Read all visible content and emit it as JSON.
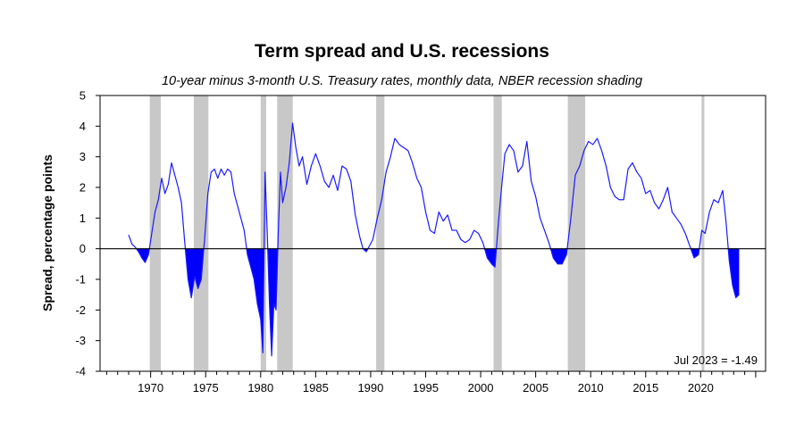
{
  "chart_data": {
    "type": "line",
    "title": "Term spread and U.S. recessions",
    "subtitle": "10-year minus 3-month U.S. Treasury rates, monthly data, NBER recession shading",
    "xlabel": "",
    "ylabel": "Spread, percentage points",
    "xlim": [
      1965.4,
      2025.9
    ],
    "ylim": [
      -4,
      5
    ],
    "yticks": [
      5,
      4,
      3,
      2,
      1,
      0,
      -1,
      -2,
      -3,
      -4
    ],
    "xticks": [
      1970,
      1975,
      1980,
      1985,
      1990,
      1995,
      2000,
      2005,
      2010,
      2015,
      2020
    ],
    "ytick_labels": [
      "5",
      "4",
      "3",
      "2",
      "1",
      "0",
      "-1",
      "-2",
      "-3",
      "-4"
    ],
    "xtick_labels": [
      "1970",
      "1975",
      "1980",
      "1985",
      "1990",
      "1995",
      "2000",
      "2005",
      "2010",
      "2015",
      "2020"
    ],
    "colors": {
      "line": "#1a1aff",
      "fill": "#0000ff",
      "recession": "#c8c8c8",
      "zero_line": "#000000"
    },
    "recessions": [
      [
        1969.92,
        1970.92
      ],
      [
        1973.92,
        1975.25
      ],
      [
        1980.0,
        1980.5
      ],
      [
        1981.5,
        1982.92
      ],
      [
        1990.5,
        1991.25
      ],
      [
        2001.17,
        2001.92
      ],
      [
        2007.92,
        2009.5
      ],
      [
        2020.08,
        2020.33
      ]
    ],
    "series": [
      {
        "name": "Term spread",
        "x": [
          1968.0,
          1968.3,
          1968.6,
          1968.9,
          1969.2,
          1969.5,
          1969.8,
          1970.1,
          1970.4,
          1970.7,
          1971.0,
          1971.3,
          1971.6,
          1971.9,
          1972.2,
          1972.5,
          1972.8,
          1973.1,
          1973.4,
          1973.7,
          1974.0,
          1974.3,
          1974.6,
          1974.9,
          1975.2,
          1975.5,
          1975.8,
          1976.1,
          1976.4,
          1976.7,
          1977.0,
          1977.3,
          1977.6,
          1977.9,
          1978.2,
          1978.5,
          1978.8,
          1979.1,
          1979.4,
          1979.7,
          1980.0,
          1980.2,
          1980.4,
          1980.6,
          1980.8,
          1981.0,
          1981.2,
          1981.4,
          1981.6,
          1981.8,
          1982.0,
          1982.3,
          1982.6,
          1982.9,
          1983.2,
          1983.5,
          1983.8,
          1984.2,
          1984.6,
          1985.0,
          1985.4,
          1985.8,
          1986.2,
          1986.6,
          1987.0,
          1987.4,
          1987.8,
          1988.2,
          1988.6,
          1989.0,
          1989.3,
          1989.6,
          1989.9,
          1990.2,
          1990.6,
          1991.0,
          1991.4,
          1991.8,
          1992.2,
          1992.6,
          1993.0,
          1993.4,
          1993.8,
          1994.2,
          1994.6,
          1995.0,
          1995.4,
          1995.8,
          1996.2,
          1996.6,
          1997.0,
          1997.4,
          1997.8,
          1998.2,
          1998.6,
          1999.0,
          1999.4,
          1999.8,
          2000.2,
          2000.6,
          2001.0,
          2001.3,
          2001.6,
          2001.9,
          2002.2,
          2002.6,
          2003.0,
          2003.4,
          2003.8,
          2004.2,
          2004.6,
          2005.0,
          2005.4,
          2005.8,
          2006.2,
          2006.6,
          2007.0,
          2007.4,
          2007.8,
          2008.2,
          2008.6,
          2009.0,
          2009.4,
          2009.8,
          2010.2,
          2010.6,
          2011.0,
          2011.4,
          2011.8,
          2012.2,
          2012.6,
          2013.0,
          2013.4,
          2013.8,
          2014.2,
          2014.6,
          2015.0,
          2015.4,
          2015.8,
          2016.2,
          2016.6,
          2017.0,
          2017.4,
          2017.8,
          2018.2,
          2018.6,
          2019.0,
          2019.4,
          2019.8,
          2020.1,
          2020.4,
          2020.8,
          2021.2,
          2021.6,
          2022.0,
          2022.3,
          2022.6,
          2022.9,
          2023.2,
          2023.5
        ],
        "values": [
          0.45,
          0.15,
          0.05,
          -0.1,
          -0.3,
          -0.45,
          -0.2,
          0.5,
          1.2,
          1.6,
          2.3,
          1.8,
          2.1,
          2.8,
          2.4,
          2.0,
          1.5,
          0.2,
          -1.0,
          -1.6,
          -0.9,
          -1.3,
          -1.0,
          0.3,
          1.8,
          2.5,
          2.6,
          2.3,
          2.6,
          2.4,
          2.6,
          2.5,
          1.8,
          1.4,
          1.0,
          0.6,
          -0.2,
          -0.6,
          -1.0,
          -1.8,
          -2.3,
          -3.4,
          2.5,
          0.5,
          -1.8,
          -3.5,
          -1.8,
          -2.0,
          0.5,
          2.5,
          1.5,
          2.0,
          2.8,
          4.1,
          3.3,
          2.7,
          3.0,
          2.1,
          2.7,
          3.1,
          2.7,
          2.2,
          2.0,
          2.4,
          1.9,
          2.7,
          2.6,
          2.2,
          1.1,
          0.4,
          0.0,
          -0.1,
          0.1,
          0.3,
          1.0,
          1.6,
          2.5,
          3.0,
          3.6,
          3.4,
          3.3,
          3.2,
          2.8,
          2.3,
          2.0,
          1.2,
          0.6,
          0.5,
          1.2,
          0.9,
          1.1,
          0.6,
          0.6,
          0.3,
          0.2,
          0.3,
          0.6,
          0.5,
          0.2,
          -0.3,
          -0.5,
          -0.6,
          0.8,
          2.0,
          3.1,
          3.4,
          3.2,
          2.5,
          2.7,
          3.5,
          2.2,
          1.7,
          1.0,
          0.6,
          0.2,
          -0.3,
          -0.5,
          -0.5,
          -0.2,
          1.0,
          2.4,
          2.7,
          3.2,
          3.5,
          3.4,
          3.6,
          3.2,
          2.7,
          2.0,
          1.7,
          1.6,
          1.6,
          2.6,
          2.8,
          2.5,
          2.3,
          1.8,
          1.9,
          1.5,
          1.3,
          1.6,
          2.0,
          1.2,
          1.0,
          0.8,
          0.5,
          0.1,
          -0.3,
          -0.2,
          0.6,
          0.5,
          1.2,
          1.6,
          1.5,
          1.9,
          0.9,
          -0.4,
          -1.2,
          -1.6,
          -1.49
        ]
      }
    ],
    "annotation": "Jul 2023 = -1.49"
  }
}
